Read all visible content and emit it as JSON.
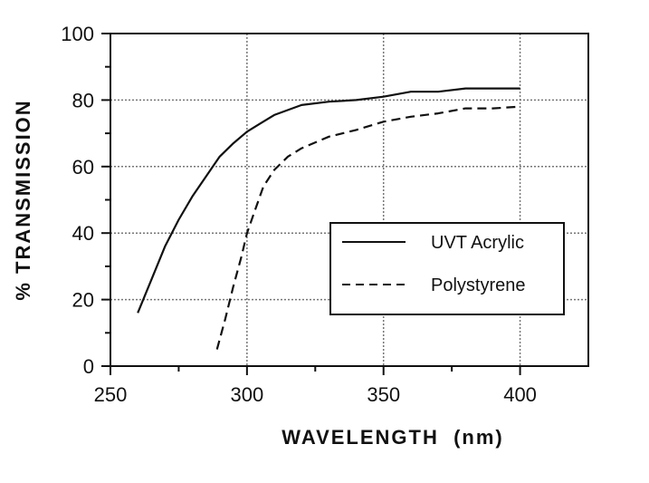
{
  "chart_data": {
    "type": "line",
    "title": "",
    "xlabel": "WAVELENGTH  (nm)",
    "ylabel": "% TRANSMISSION",
    "xlim": [
      250,
      425
    ],
    "ylim": [
      0,
      100
    ],
    "xticks": [
      250,
      300,
      350,
      400
    ],
    "yticks": [
      0,
      20,
      40,
      60,
      80,
      100
    ],
    "grid": true,
    "legend_position": "center-right",
    "series": [
      {
        "name": "UVT Acrylic",
        "style": "solid",
        "color": "#111111",
        "x": [
          260,
          265,
          270,
          275,
          280,
          285,
          290,
          295,
          300,
          305,
          310,
          315,
          320,
          330,
          340,
          350,
          360,
          370,
          380,
          390,
          400
        ],
        "y": [
          16,
          26,
          36,
          44,
          51,
          57,
          63,
          67,
          70.5,
          73,
          75.5,
          77,
          78.5,
          79.5,
          80,
          81,
          82.5,
          82.5,
          83.5,
          83.5,
          83.5
        ]
      },
      {
        "name": "Polystyrene",
        "style": "dashed",
        "color": "#111111",
        "x": [
          289,
          292,
          295,
          298,
          300,
          303,
          306,
          310,
          315,
          320,
          330,
          340,
          350,
          360,
          370,
          380,
          390,
          400
        ],
        "y": [
          5,
          14,
          24,
          33,
          40,
          47,
          54,
          59,
          63,
          65.5,
          69,
          71,
          73.5,
          75,
          76,
          77.5,
          77.5,
          78
        ]
      }
    ]
  }
}
